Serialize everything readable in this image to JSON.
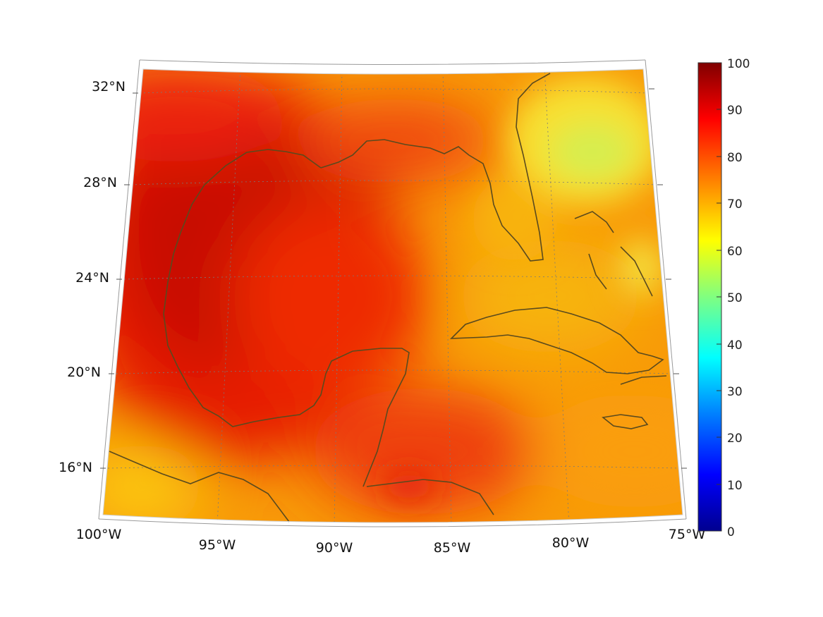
{
  "map": {
    "region": "Gulf of Mexico and Caribbean",
    "lon_range": [
      -100,
      -75
    ],
    "lat_range": [
      14,
      33
    ],
    "lon_ticks": [
      {
        "value": -100,
        "label": "100°W"
      },
      {
        "value": -95,
        "label": "95°W"
      },
      {
        "value": -90,
        "label": "90°W"
      },
      {
        "value": -85,
        "label": "85°W"
      },
      {
        "value": -80,
        "label": "80°W"
      },
      {
        "value": -75,
        "label": "75°W"
      }
    ],
    "lat_ticks": [
      {
        "value": 32,
        "label": "32°N"
      },
      {
        "value": 28,
        "label": "28°N"
      },
      {
        "value": 24,
        "label": "24°N"
      },
      {
        "value": 20,
        "label": "20°N"
      },
      {
        "value": 16,
        "label": "16°N"
      }
    ],
    "coastline_color": "#5a4a1e",
    "grid": true
  },
  "colorbar": {
    "colormap": "jet",
    "range": [
      0,
      100
    ],
    "ticks": [
      "100",
      "90",
      "80",
      "70",
      "60",
      "50",
      "40",
      "30",
      "20",
      "10",
      "0"
    ],
    "colors": [
      "#00008f",
      "#0000ff",
      "#0080ff",
      "#00ffff",
      "#80ff80",
      "#ffff00",
      "#ff8000",
      "#ff0000",
      "#800000"
    ]
  },
  "field": {
    "description_values": {
      "western_gulf": 92,
      "central_gulf": 88,
      "eastern_gulf": 78,
      "florida": 74,
      "atlantic_ne": 60,
      "caribbean": 76,
      "south_west": 68
    }
  }
}
